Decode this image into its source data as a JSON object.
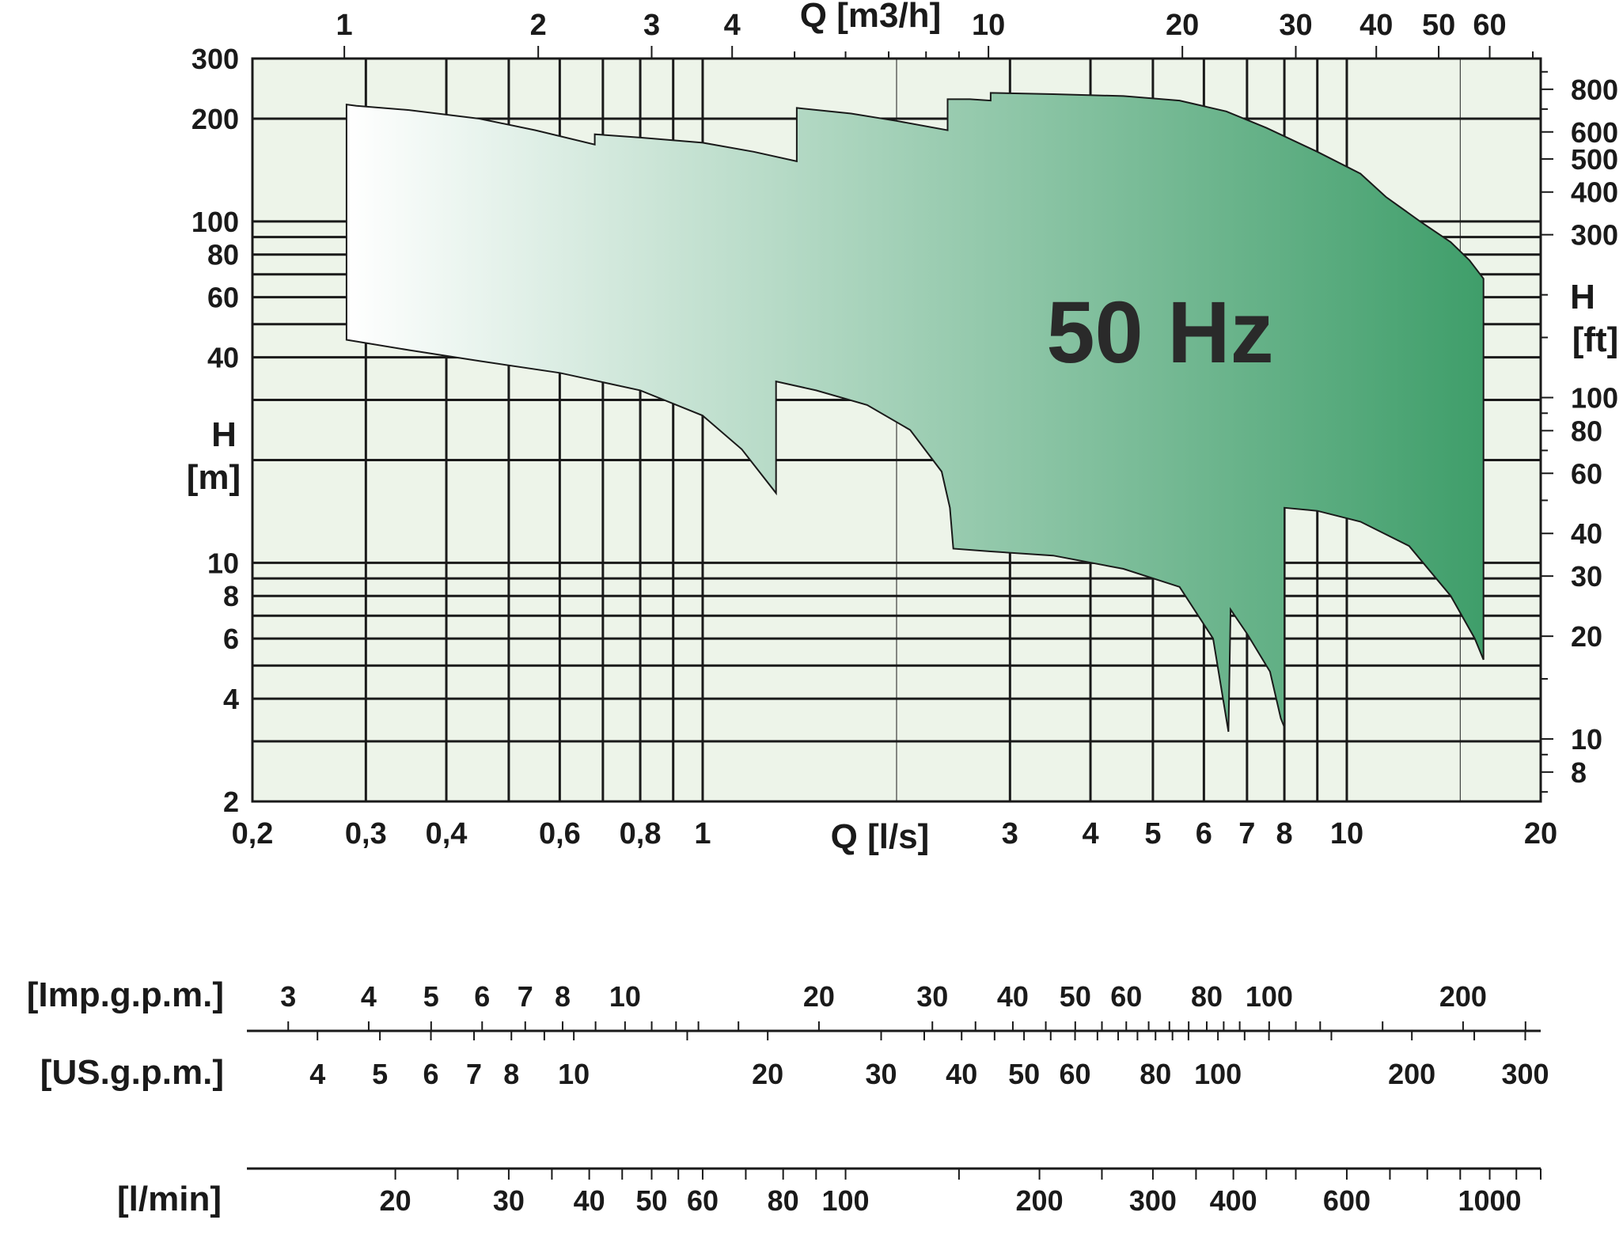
{
  "chart_data": {
    "type": "area",
    "label_50hz": "50 Hz",
    "xaxis_bottom": {
      "label": "Q [l/s]",
      "scale": "log",
      "range": [
        0.2,
        20
      ],
      "tick_labels": [
        {
          "value": 0.2,
          "label": "0,2"
        },
        {
          "value": 0.3,
          "label": "0,3"
        },
        {
          "value": 0.4,
          "label": "0,4"
        },
        {
          "value": 0.6,
          "label": "0,6"
        },
        {
          "value": 0.8,
          "label": "0,8"
        },
        {
          "value": 1,
          "label": "1"
        },
        {
          "value": 3,
          "label": "3"
        },
        {
          "value": 4,
          "label": "4"
        },
        {
          "value": 5,
          "label": "5"
        },
        {
          "value": 6,
          "label": "6"
        },
        {
          "value": 7,
          "label": "7"
        },
        {
          "value": 8,
          "label": "8"
        },
        {
          "value": 10,
          "label": "10"
        },
        {
          "value": 20,
          "label": "20"
        }
      ]
    },
    "xaxis_top": {
      "label": "Q [m3/h]",
      "scale": "log",
      "tick_labels": [
        {
          "value": 1,
          "label": "1"
        },
        {
          "value": 2,
          "label": "2"
        },
        {
          "value": 3,
          "label": "3"
        },
        {
          "value": 4,
          "label": "4"
        },
        {
          "value": 10,
          "label": "10"
        },
        {
          "value": 20,
          "label": "20"
        },
        {
          "value": 30,
          "label": "30"
        },
        {
          "value": 40,
          "label": "40"
        },
        {
          "value": 50,
          "label": "50"
        },
        {
          "value": 60,
          "label": "60"
        }
      ]
    },
    "yaxis_left": {
      "label_line1": "H",
      "label_line2": "[m]",
      "scale": "log",
      "range": [
        2,
        300
      ],
      "tick_labels": [
        {
          "value": 2,
          "label": "2"
        },
        {
          "value": 4,
          "label": "4"
        },
        {
          "value": 6,
          "label": "6"
        },
        {
          "value": 8,
          "label": "8"
        },
        {
          "value": 10,
          "label": "10"
        },
        {
          "value": 40,
          "label": "40"
        },
        {
          "value": 60,
          "label": "60"
        },
        {
          "value": 80,
          "label": "80"
        },
        {
          "value": 100,
          "label": "100"
        },
        {
          "value": 200,
          "label": "200"
        },
        {
          "value": 300,
          "label": "300"
        }
      ]
    },
    "yaxis_right": {
      "label_line1": "H",
      "label_line2": "[ft]",
      "scale": "log",
      "tick_labels": [
        {
          "value": 8,
          "label": "8"
        },
        {
          "value": 10,
          "label": "10"
        },
        {
          "value": 20,
          "label": "20"
        },
        {
          "value": 30,
          "label": "30"
        },
        {
          "value": 40,
          "label": "40"
        },
        {
          "value": 60,
          "label": "60"
        },
        {
          "value": 80,
          "label": "80"
        },
        {
          "value": 100,
          "label": "100"
        },
        {
          "value": 300,
          "label": "300"
        },
        {
          "value": 400,
          "label": "400"
        },
        {
          "value": 500,
          "label": "500"
        },
        {
          "value": 600,
          "label": "600"
        },
        {
          "value": 800,
          "label": "800"
        }
      ]
    },
    "envelope_upper": [
      [
        0.28,
        220
      ],
      [
        0.29,
        218
      ],
      [
        0.35,
        212
      ],
      [
        0.45,
        200
      ],
      [
        0.55,
        185
      ],
      [
        0.68,
        168
      ],
      [
        0.68,
        180
      ],
      [
        0.8,
        176
      ],
      [
        1.0,
        170
      ],
      [
        1.2,
        160
      ],
      [
        1.4,
        150
      ],
      [
        1.4,
        215
      ],
      [
        1.7,
        207
      ],
      [
        2.0,
        197
      ],
      [
        2.4,
        185
      ],
      [
        2.4,
        228
      ],
      [
        2.6,
        228
      ],
      [
        2.8,
        226
      ],
      [
        2.8,
        238
      ],
      [
        3.5,
        236
      ],
      [
        4.5,
        233
      ],
      [
        5.5,
        226
      ],
      [
        6.5,
        210
      ],
      [
        7.5,
        188
      ],
      [
        9.0,
        160
      ],
      [
        10.5,
        138
      ],
      [
        11.5,
        118
      ],
      [
        13.0,
        100
      ],
      [
        14.5,
        87
      ],
      [
        15.5,
        77
      ],
      [
        16.3,
        68
      ]
    ],
    "envelope_lower": [
      [
        0.28,
        45
      ],
      [
        0.35,
        42
      ],
      [
        0.45,
        39
      ],
      [
        0.6,
        36
      ],
      [
        0.8,
        32
      ],
      [
        1.0,
        27
      ],
      [
        1.15,
        21.5
      ],
      [
        1.3,
        16
      ],
      [
        1.3,
        34
      ],
      [
        1.5,
        32
      ],
      [
        1.8,
        29
      ],
      [
        2.1,
        24.5
      ],
      [
        2.35,
        18.5
      ],
      [
        2.42,
        14.5
      ],
      [
        2.45,
        11
      ],
      [
        2.8,
        10.8
      ],
      [
        3.5,
        10.5
      ],
      [
        4.5,
        9.6
      ],
      [
        5.5,
        8.5
      ],
      [
        6.2,
        6.0
      ],
      [
        6.55,
        3.2
      ],
      [
        6.6,
        7.3
      ],
      [
        7.0,
        6.2
      ],
      [
        7.6,
        4.8
      ],
      [
        7.9,
        3.5
      ],
      [
        8.0,
        3.3
      ],
      [
        8.0,
        14.5
      ],
      [
        9.0,
        14.2
      ],
      [
        10.5,
        13.2
      ],
      [
        12.5,
        11.2
      ],
      [
        14.5,
        8.0
      ],
      [
        15.8,
        6.0
      ],
      [
        16.3,
        5.2
      ]
    ],
    "colors": {
      "start": "#ffffff",
      "end": "#3f9e6a",
      "plot_bg": "#edf4e9"
    },
    "conversion_scales": [
      {
        "label": "[Imp.g.p.m.]",
        "tick_labels": [
          {
            "value": 3,
            "label": "3"
          },
          {
            "value": 4,
            "label": "4"
          },
          {
            "value": 5,
            "label": "5"
          },
          {
            "value": 6,
            "label": "6"
          },
          {
            "value": 7,
            "label": "7"
          },
          {
            "value": 8,
            "label": "8"
          },
          {
            "value": 10,
            "label": "10"
          },
          {
            "value": 20,
            "label": "20"
          },
          {
            "value": 30,
            "label": "30"
          },
          {
            "value": 40,
            "label": "40"
          },
          {
            "value": 50,
            "label": "50"
          },
          {
            "value": 60,
            "label": "60"
          },
          {
            "value": 80,
            "label": "80"
          },
          {
            "value": 100,
            "label": "100"
          },
          {
            "value": 200,
            "label": "200"
          }
        ]
      },
      {
        "label": "[US.g.p.m.]",
        "tick_labels": [
          {
            "value": 4,
            "label": "4"
          },
          {
            "value": 5,
            "label": "5"
          },
          {
            "value": 6,
            "label": "6"
          },
          {
            "value": 7,
            "label": "7"
          },
          {
            "value": 8,
            "label": "8"
          },
          {
            "value": 10,
            "label": "10"
          },
          {
            "value": 20,
            "label": "20"
          },
          {
            "value": 30,
            "label": "30"
          },
          {
            "value": 40,
            "label": "40"
          },
          {
            "value": 50,
            "label": "50"
          },
          {
            "value": 60,
            "label": "60"
          },
          {
            "value": 80,
            "label": "80"
          },
          {
            "value": 100,
            "label": "100"
          },
          {
            "value": 200,
            "label": "200"
          },
          {
            "value": 300,
            "label": "300"
          }
        ]
      },
      {
        "label": "[l/min]",
        "tick_labels": [
          {
            "value": 20,
            "label": "20"
          },
          {
            "value": 30,
            "label": "30"
          },
          {
            "value": 40,
            "label": "40"
          },
          {
            "value": 50,
            "label": "50"
          },
          {
            "value": 60,
            "label": "60"
          },
          {
            "value": 80,
            "label": "80"
          },
          {
            "value": 100,
            "label": "100"
          },
          {
            "value": 200,
            "label": "200"
          },
          {
            "value": 300,
            "label": "300"
          },
          {
            "value": 400,
            "label": "400"
          },
          {
            "value": 600,
            "label": "600"
          },
          {
            "value": 1000,
            "label": "1000"
          }
        ]
      }
    ]
  }
}
